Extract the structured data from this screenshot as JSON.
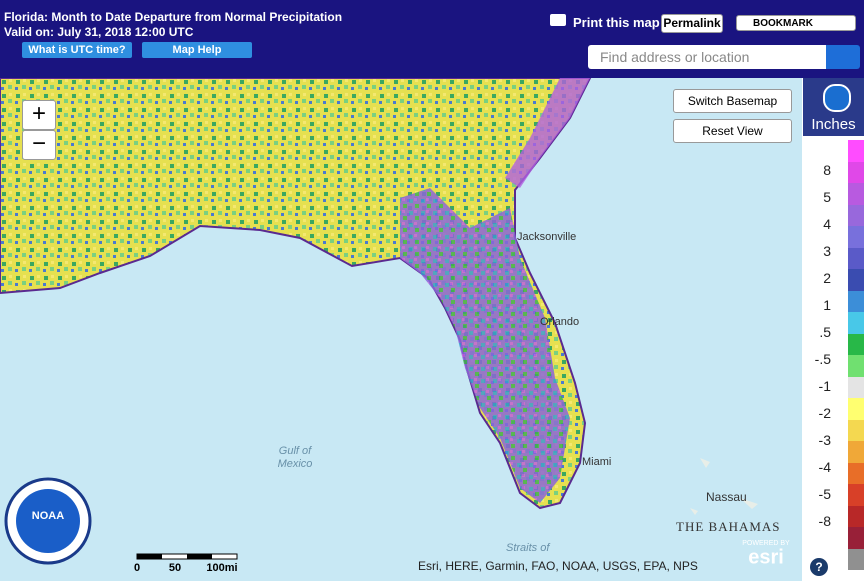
{
  "header": {
    "title": "Florida: Month to Date Departure from Normal Precipitation",
    "valid": "Valid on: July 31, 2018 12:00 UTC",
    "buttons": [
      "What is UTC time?",
      "Map Help"
    ],
    "print": "Print this map",
    "permalink": "Permalink",
    "bookmark": "BOOKMARK",
    "search": "Find address or location"
  },
  "controls": {
    "zoom_in": "+",
    "zoom_out": "−",
    "switch": "Switch Basemap",
    "reset": "Reset View"
  },
  "legend": {
    "title": "Inches",
    "labels": [
      "8",
      "5",
      "4",
      "3",
      "2",
      "1",
      ".5",
      "-.5",
      "-1",
      "-2",
      "-3",
      "-4",
      "-5",
      "-8"
    ],
    "colors": [
      "#ff4cff",
      "#e048e8",
      "#b85ae0",
      "#9868dc",
      "#7870dc",
      "#5a5ac8",
      "#3a4cb0",
      "#3c8ed8",
      "#48c8e8",
      "#28b848",
      "#70e070",
      "#e4e4e4",
      "#ffff70",
      "#f4d850",
      "#f0a838",
      "#e86e28",
      "#d84028",
      "#b82828",
      "#982038",
      "#909090"
    ]
  },
  "map": {
    "places": [
      "Jacksonville",
      "Orlando",
      "Gulf of",
      "Mexico",
      "Miami",
      "Nassau",
      "THE BAHAMAS",
      "Straits of"
    ],
    "scale": [
      "0",
      "50",
      "100mi"
    ],
    "attribution": "Esri, HERE, Garmin, FAO, NOAA, USGS, EPA, NPS",
    "powered": "POWERED BY",
    "esri": "esri",
    "noaa": "NOAA",
    "help": "?"
  }
}
